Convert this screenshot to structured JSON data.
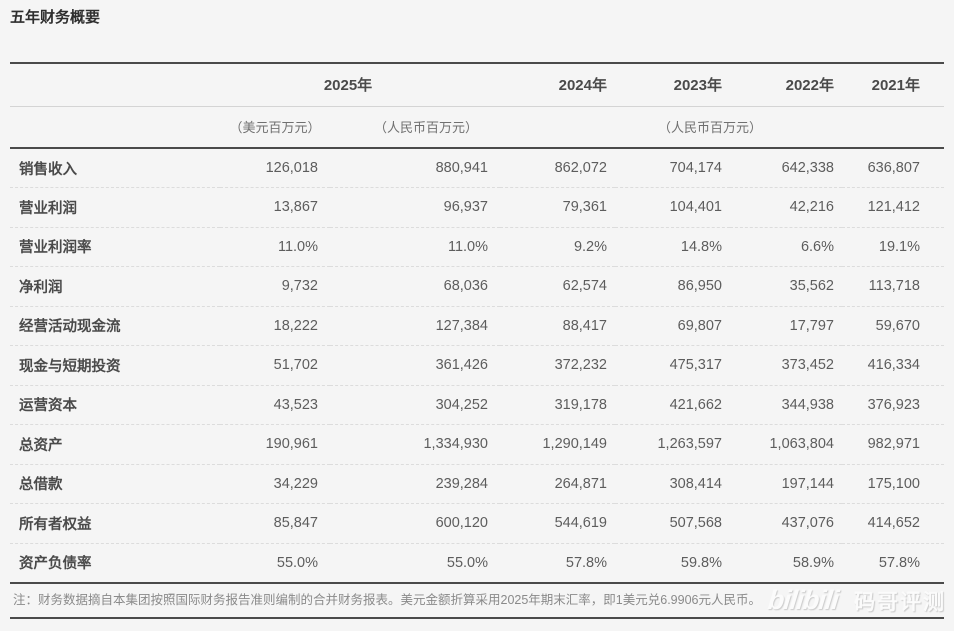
{
  "page": {
    "title": "五年财务概要",
    "background": "#f5f5f5"
  },
  "table": {
    "header": {
      "years": [
        "2025年",
        "2024年",
        "2023年",
        "2022年",
        "2021年"
      ],
      "unit_usd": "（美元百万元）",
      "unit_rmb": "（人民币百万元）",
      "unit_rmb_span": "（人民币百万元）"
    },
    "rows": [
      {
        "label": "销售收入",
        "values": [
          "126,018",
          "880,941",
          "862,072",
          "704,174",
          "642,338",
          "636,807"
        ]
      },
      {
        "label": "营业利润",
        "values": [
          "13,867",
          "96,937",
          "79,361",
          "104,401",
          "42,216",
          "121,412"
        ]
      },
      {
        "label": "营业利润率",
        "values": [
          "11.0%",
          "11.0%",
          "9.2%",
          "14.8%",
          "6.6%",
          "19.1%"
        ]
      },
      {
        "label": "净利润",
        "values": [
          "9,732",
          "68,036",
          "62,574",
          "86,950",
          "35,562",
          "113,718"
        ]
      },
      {
        "label": "经营活动现金流",
        "values": [
          "18,222",
          "127,384",
          "88,417",
          "69,807",
          "17,797",
          "59,670"
        ]
      },
      {
        "label": "现金与短期投资",
        "values": [
          "51,702",
          "361,426",
          "372,232",
          "475,317",
          "373,452",
          "416,334"
        ]
      },
      {
        "label": "运营资本",
        "values": [
          "43,523",
          "304,252",
          "319,178",
          "421,662",
          "344,938",
          "376,923"
        ]
      },
      {
        "label": "总资产",
        "values": [
          "190,961",
          "1,334,930",
          "1,290,149",
          "1,263,597",
          "1,063,804",
          "982,971"
        ]
      },
      {
        "label": "总借款",
        "values": [
          "34,229",
          "239,284",
          "264,871",
          "308,414",
          "197,144",
          "175,100"
        ]
      },
      {
        "label": "所有者权益",
        "values": [
          "85,847",
          "600,120",
          "544,619",
          "507,568",
          "437,076",
          "414,652"
        ]
      },
      {
        "label": "资产负债率",
        "values": [
          "55.0%",
          "55.0%",
          "57.8%",
          "59.8%",
          "58.9%",
          "57.8%"
        ]
      }
    ]
  },
  "footnote": {
    "text": "注：财务数据摘自本集团按照国际财务报告准则编制的合并财务报表。美元金额折算采用2025年期末汇率，即1美元兑6.9906元人民币。"
  },
  "watermark": {
    "logo": "bilibili",
    "name": "码哥评测"
  },
  "colors": {
    "background": "#f5f5f5",
    "rule_dark": "#4a4a4a",
    "row_separator": "#dcdcdc",
    "text_label": "#4a4a4a",
    "text_number": "#5d5d5d",
    "text_footnote": "#8a8a8a"
  }
}
